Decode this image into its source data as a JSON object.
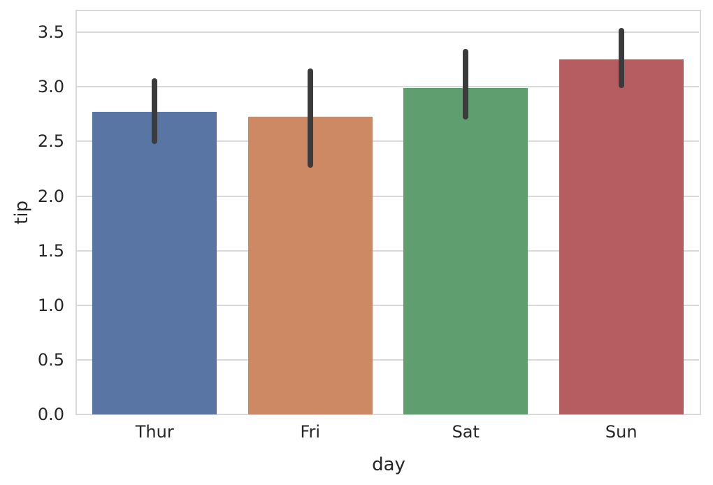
{
  "chart_data": {
    "type": "bar",
    "title": "",
    "xlabel": "day",
    "ylabel": "tip",
    "categories": [
      "Thur",
      "Fri",
      "Sat",
      "Sun"
    ],
    "values": [
      2.77,
      2.73,
      2.99,
      3.25
    ],
    "error_bars": [
      {
        "low": 2.48,
        "high": 3.08
      },
      {
        "low": 2.26,
        "high": 3.17
      },
      {
        "low": 2.7,
        "high": 3.35
      },
      {
        "low": 2.99,
        "high": 3.54
      }
    ],
    "bar_colors": [
      "#5875a4",
      "#cc8963",
      "#5f9e6e",
      "#b55d60"
    ],
    "ytick_labels": [
      "0.0",
      "0.5",
      "1.0",
      "1.5",
      "2.0",
      "2.5",
      "3.0",
      "3.5"
    ],
    "ytick_values": [
      0.0,
      0.5,
      1.0,
      1.5,
      2.0,
      2.5,
      3.0,
      3.5
    ],
    "ylim": [
      0,
      3.7
    ],
    "grid": true,
    "legend": "none",
    "errorbar_color": "#3b3b3b",
    "grid_color": "#d9d9d9",
    "text_color": "#262626",
    "background_color": "#ffffff"
  }
}
